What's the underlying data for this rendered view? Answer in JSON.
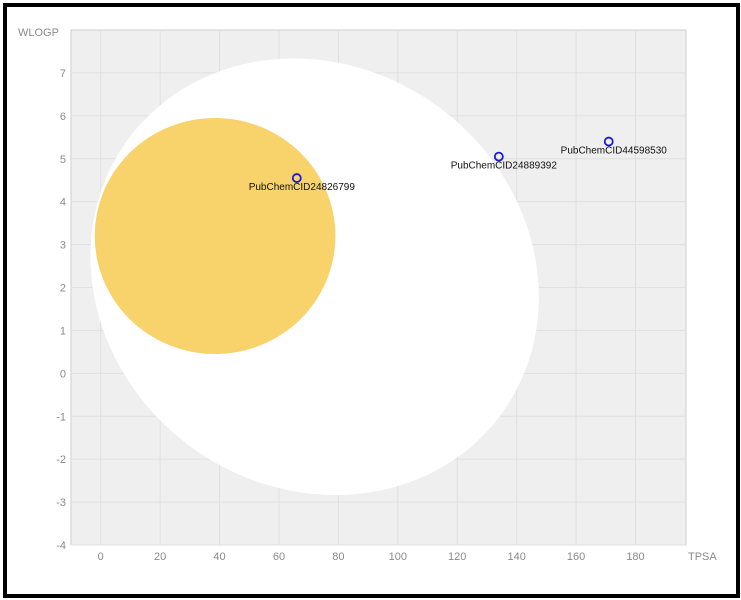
{
  "chart_data": {
    "type": "scatter",
    "xlabel": "TPSA",
    "ylabel": "WLOGP",
    "xlim": [
      -10,
      197
    ],
    "ylim": [
      -4,
      8
    ],
    "x_ticks": [
      0,
      20,
      40,
      60,
      80,
      100,
      120,
      140,
      160,
      180
    ],
    "y_ticks": [
      -4,
      -3,
      -2,
      -1,
      0,
      1,
      2,
      3,
      4,
      5,
      6,
      7
    ],
    "grid": true,
    "regions": [
      {
        "name": "white",
        "color": "#ffffff",
        "cx": 72,
        "cy": 2.25,
        "rx": 78,
        "ry": 4.9,
        "rotation_deg": 37
      },
      {
        "name": "yolk",
        "color": "#f8d26a",
        "cx": 38.5,
        "cy": 3.2,
        "rx": 40.5,
        "ry": 2.75,
        "rotation_deg": 0
      }
    ],
    "points": [
      {
        "label": "PubChemCID24826799",
        "x": 66,
        "y": 4.55
      },
      {
        "label": "PubChemCID24889392",
        "x": 134,
        "y": 5.05
      },
      {
        "label": "PubChemCID44598530",
        "x": 171,
        "y": 5.4
      }
    ]
  },
  "colors": {
    "plot_bg": "#efefef",
    "grid": "#e0e0e0",
    "point": "#1a1ad6",
    "white_region": "#ffffff",
    "yolk_region": "#f8d26a"
  }
}
